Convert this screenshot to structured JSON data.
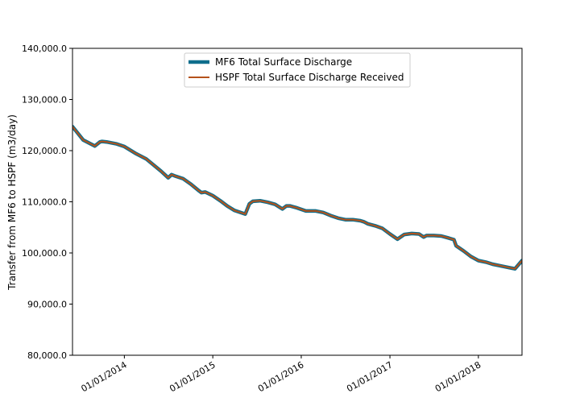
{
  "chart_data": {
    "type": "line",
    "title": "",
    "xlabel": "",
    "ylabel": "Transfer from MF6 to HSPF (m3/day)",
    "xlim": [
      "2013-06-01",
      "2018-06-30"
    ],
    "ylim": [
      80000,
      140000
    ],
    "yticks": [
      {
        "value": 80000,
        "label": "80,000.0"
      },
      {
        "value": 90000,
        "label": "90,000.0"
      },
      {
        "value": 100000,
        "label": "100,000.0"
      },
      {
        "value": 110000,
        "label": "110,000.0"
      },
      {
        "value": 120000,
        "label": "120,000.0"
      },
      {
        "value": 130000,
        "label": "130,000.0"
      },
      {
        "value": 140000,
        "label": "140,000.0"
      }
    ],
    "xticks": [
      {
        "date": "2014-01-01",
        "label": "01/01/2014"
      },
      {
        "date": "2015-01-01",
        "label": "01/01/2015"
      },
      {
        "date": "2016-01-01",
        "label": "01/01/2016"
      },
      {
        "date": "2017-01-01",
        "label": "01/01/2017"
      },
      {
        "date": "2018-01-01",
        "label": "01/01/2018"
      }
    ],
    "grid": false,
    "legend_position": "top-center",
    "x": [
      "2013-06-01",
      "2013-07-15",
      "2013-09-01",
      "2013-09-22",
      "2013-10-01",
      "2013-10-20",
      "2013-12-01",
      "2014-01-01",
      "2014-02-15",
      "2014-04-01",
      "2014-06-01",
      "2014-07-01",
      "2014-07-15",
      "2014-08-01",
      "2014-09-01",
      "2014-10-01",
      "2014-11-01",
      "2014-11-15",
      "2014-12-01",
      "2015-01-01",
      "2015-02-01",
      "2015-03-01",
      "2015-04-01",
      "2015-05-15",
      "2015-06-01",
      "2015-06-15",
      "2015-07-15",
      "2015-08-15",
      "2015-09-15",
      "2015-10-15",
      "2015-11-01",
      "2015-11-15",
      "2015-12-15",
      "2016-01-20",
      "2016-03-01",
      "2016-04-01",
      "2016-05-01",
      "2016-06-01",
      "2016-07-01",
      "2016-08-01",
      "2016-09-01",
      "2016-09-15",
      "2016-10-01",
      "2016-11-01",
      "2016-12-01",
      "2017-01-01",
      "2017-02-01",
      "2017-03-01",
      "2017-04-01",
      "2017-05-01",
      "2017-05-20",
      "2017-06-01",
      "2017-07-01",
      "2017-08-01",
      "2017-09-01",
      "2017-09-22",
      "2017-10-01",
      "2017-11-01",
      "2017-12-01",
      "2018-01-01",
      "2018-02-01",
      "2018-03-01",
      "2018-04-01",
      "2018-05-01",
      "2018-06-01",
      "2018-06-30"
    ],
    "series": [
      {
        "name": "MF6 Total Surface Discharge",
        "color": "#0e6e8c",
        "values": [
          124700,
          122100,
          120900,
          121700,
          121800,
          121700,
          121300,
          120800,
          119500,
          118400,
          116000,
          114700,
          115300,
          115000,
          114500,
          113500,
          112300,
          111800,
          111900,
          111200,
          110200,
          109200,
          108300,
          107600,
          109600,
          110100,
          110200,
          109900,
          109500,
          108600,
          109200,
          109200,
          108800,
          108200,
          108200,
          107900,
          107300,
          106800,
          106500,
          106500,
          106300,
          106100,
          105700,
          105300,
          104800,
          103700,
          102700,
          103600,
          103800,
          103700,
          103100,
          103400,
          103400,
          103300,
          102900,
          102600,
          101400,
          100400,
          99300,
          98500,
          98200,
          97800,
          97500,
          97200,
          96900,
          98500
        ]
      },
      {
        "name": "HSPF Total Surface Discharge Received",
        "color": "#b5521b",
        "values": [
          124700,
          122100,
          120900,
          121700,
          121800,
          121700,
          121300,
          120800,
          119500,
          118400,
          116000,
          114700,
          115300,
          115000,
          114500,
          113500,
          112300,
          111800,
          111900,
          111200,
          110200,
          109200,
          108300,
          107600,
          109600,
          110100,
          110200,
          109900,
          109500,
          108600,
          109200,
          109200,
          108800,
          108200,
          108200,
          107900,
          107300,
          106800,
          106500,
          106500,
          106300,
          106100,
          105700,
          105300,
          104800,
          103700,
          102700,
          103600,
          103800,
          103700,
          103100,
          103400,
          103400,
          103300,
          102900,
          102600,
          101400,
          100400,
          99300,
          98500,
          98200,
          97800,
          97500,
          97200,
          96900,
          98500
        ]
      }
    ]
  }
}
